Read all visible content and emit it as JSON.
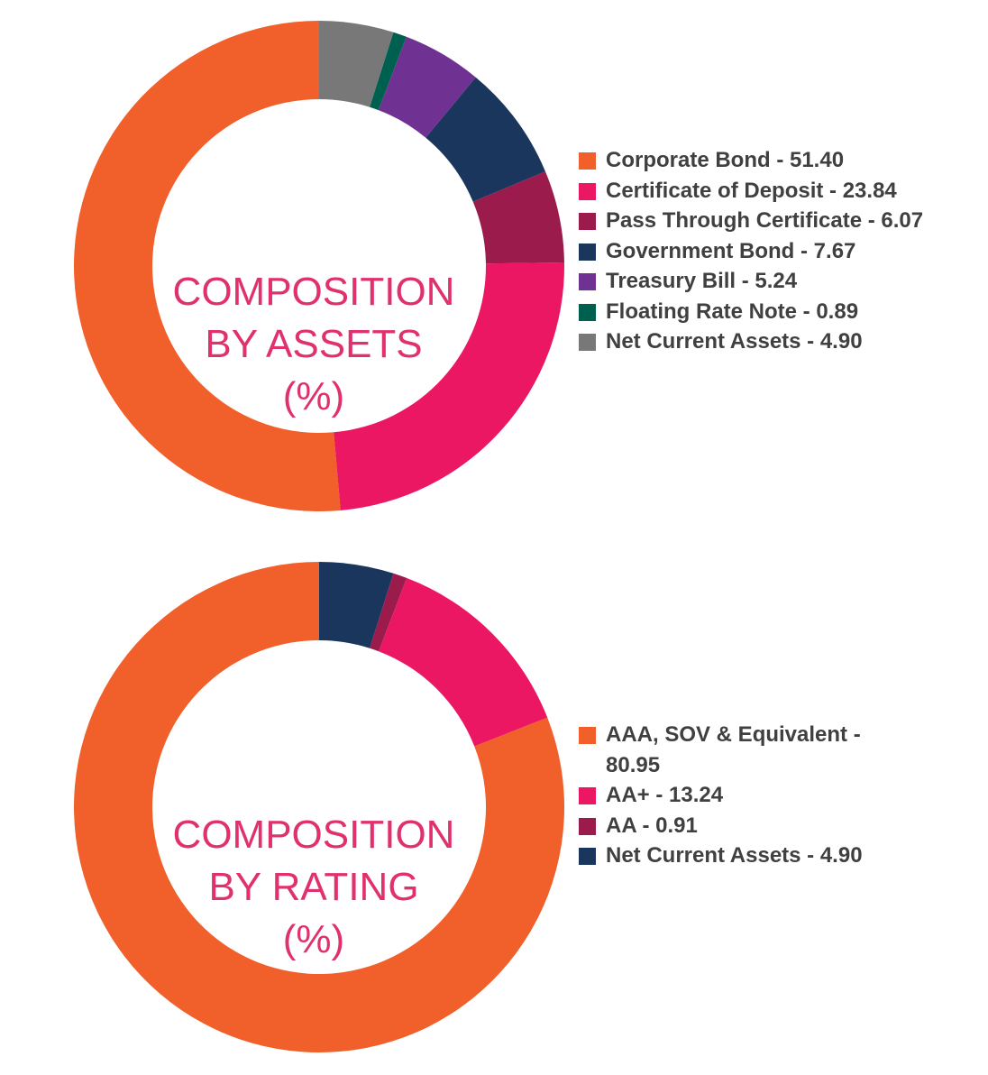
{
  "chart_data": [
    {
      "type": "pie",
      "title_lines": [
        "COMPOSITION",
        "BY ASSETS",
        "(%)"
      ],
      "legend_position": "right",
      "slices": [
        {
          "label": "Corporate Bond - 51.40",
          "value": 51.4,
          "color": "#f15f2a"
        },
        {
          "label": "Certificate of Deposit - 23.84",
          "value": 23.84,
          "color": "#ec1763"
        },
        {
          "label": "Pass Through Certificate - 6.07",
          "value": 6.07,
          "color": "#9b1b4d"
        },
        {
          "label": "Government Bond - 7.67",
          "value": 7.67,
          "color": "#1b365d"
        },
        {
          "label": "Treasury Bill - 5.24",
          "value": 5.24,
          "color": "#703292"
        },
        {
          "label": "Floating Rate Note - 0.89",
          "value": 0.89,
          "color": "#00604f"
        },
        {
          "label": "Net Current Assets - 4.90",
          "value": 4.9,
          "color": "#787878"
        }
      ]
    },
    {
      "type": "pie",
      "title_lines": [
        "COMPOSITION",
        "BY RATING",
        "(%)"
      ],
      "legend_position": "right",
      "slices": [
        {
          "label": "AAA, SOV & Equivalent - 80.95",
          "label_lines": [
            "AAA, SOV & Equivalent -",
            "80.95"
          ],
          "value": 80.95,
          "color": "#f15f2a"
        },
        {
          "label": "AA+ - 13.24",
          "value": 13.24,
          "color": "#ec1763"
        },
        {
          "label": "AA - 0.91",
          "value": 0.91,
          "color": "#9b1b4d"
        },
        {
          "label": "Net Current Assets - 4.90",
          "value": 4.9,
          "color": "#1b365d"
        }
      ]
    }
  ]
}
